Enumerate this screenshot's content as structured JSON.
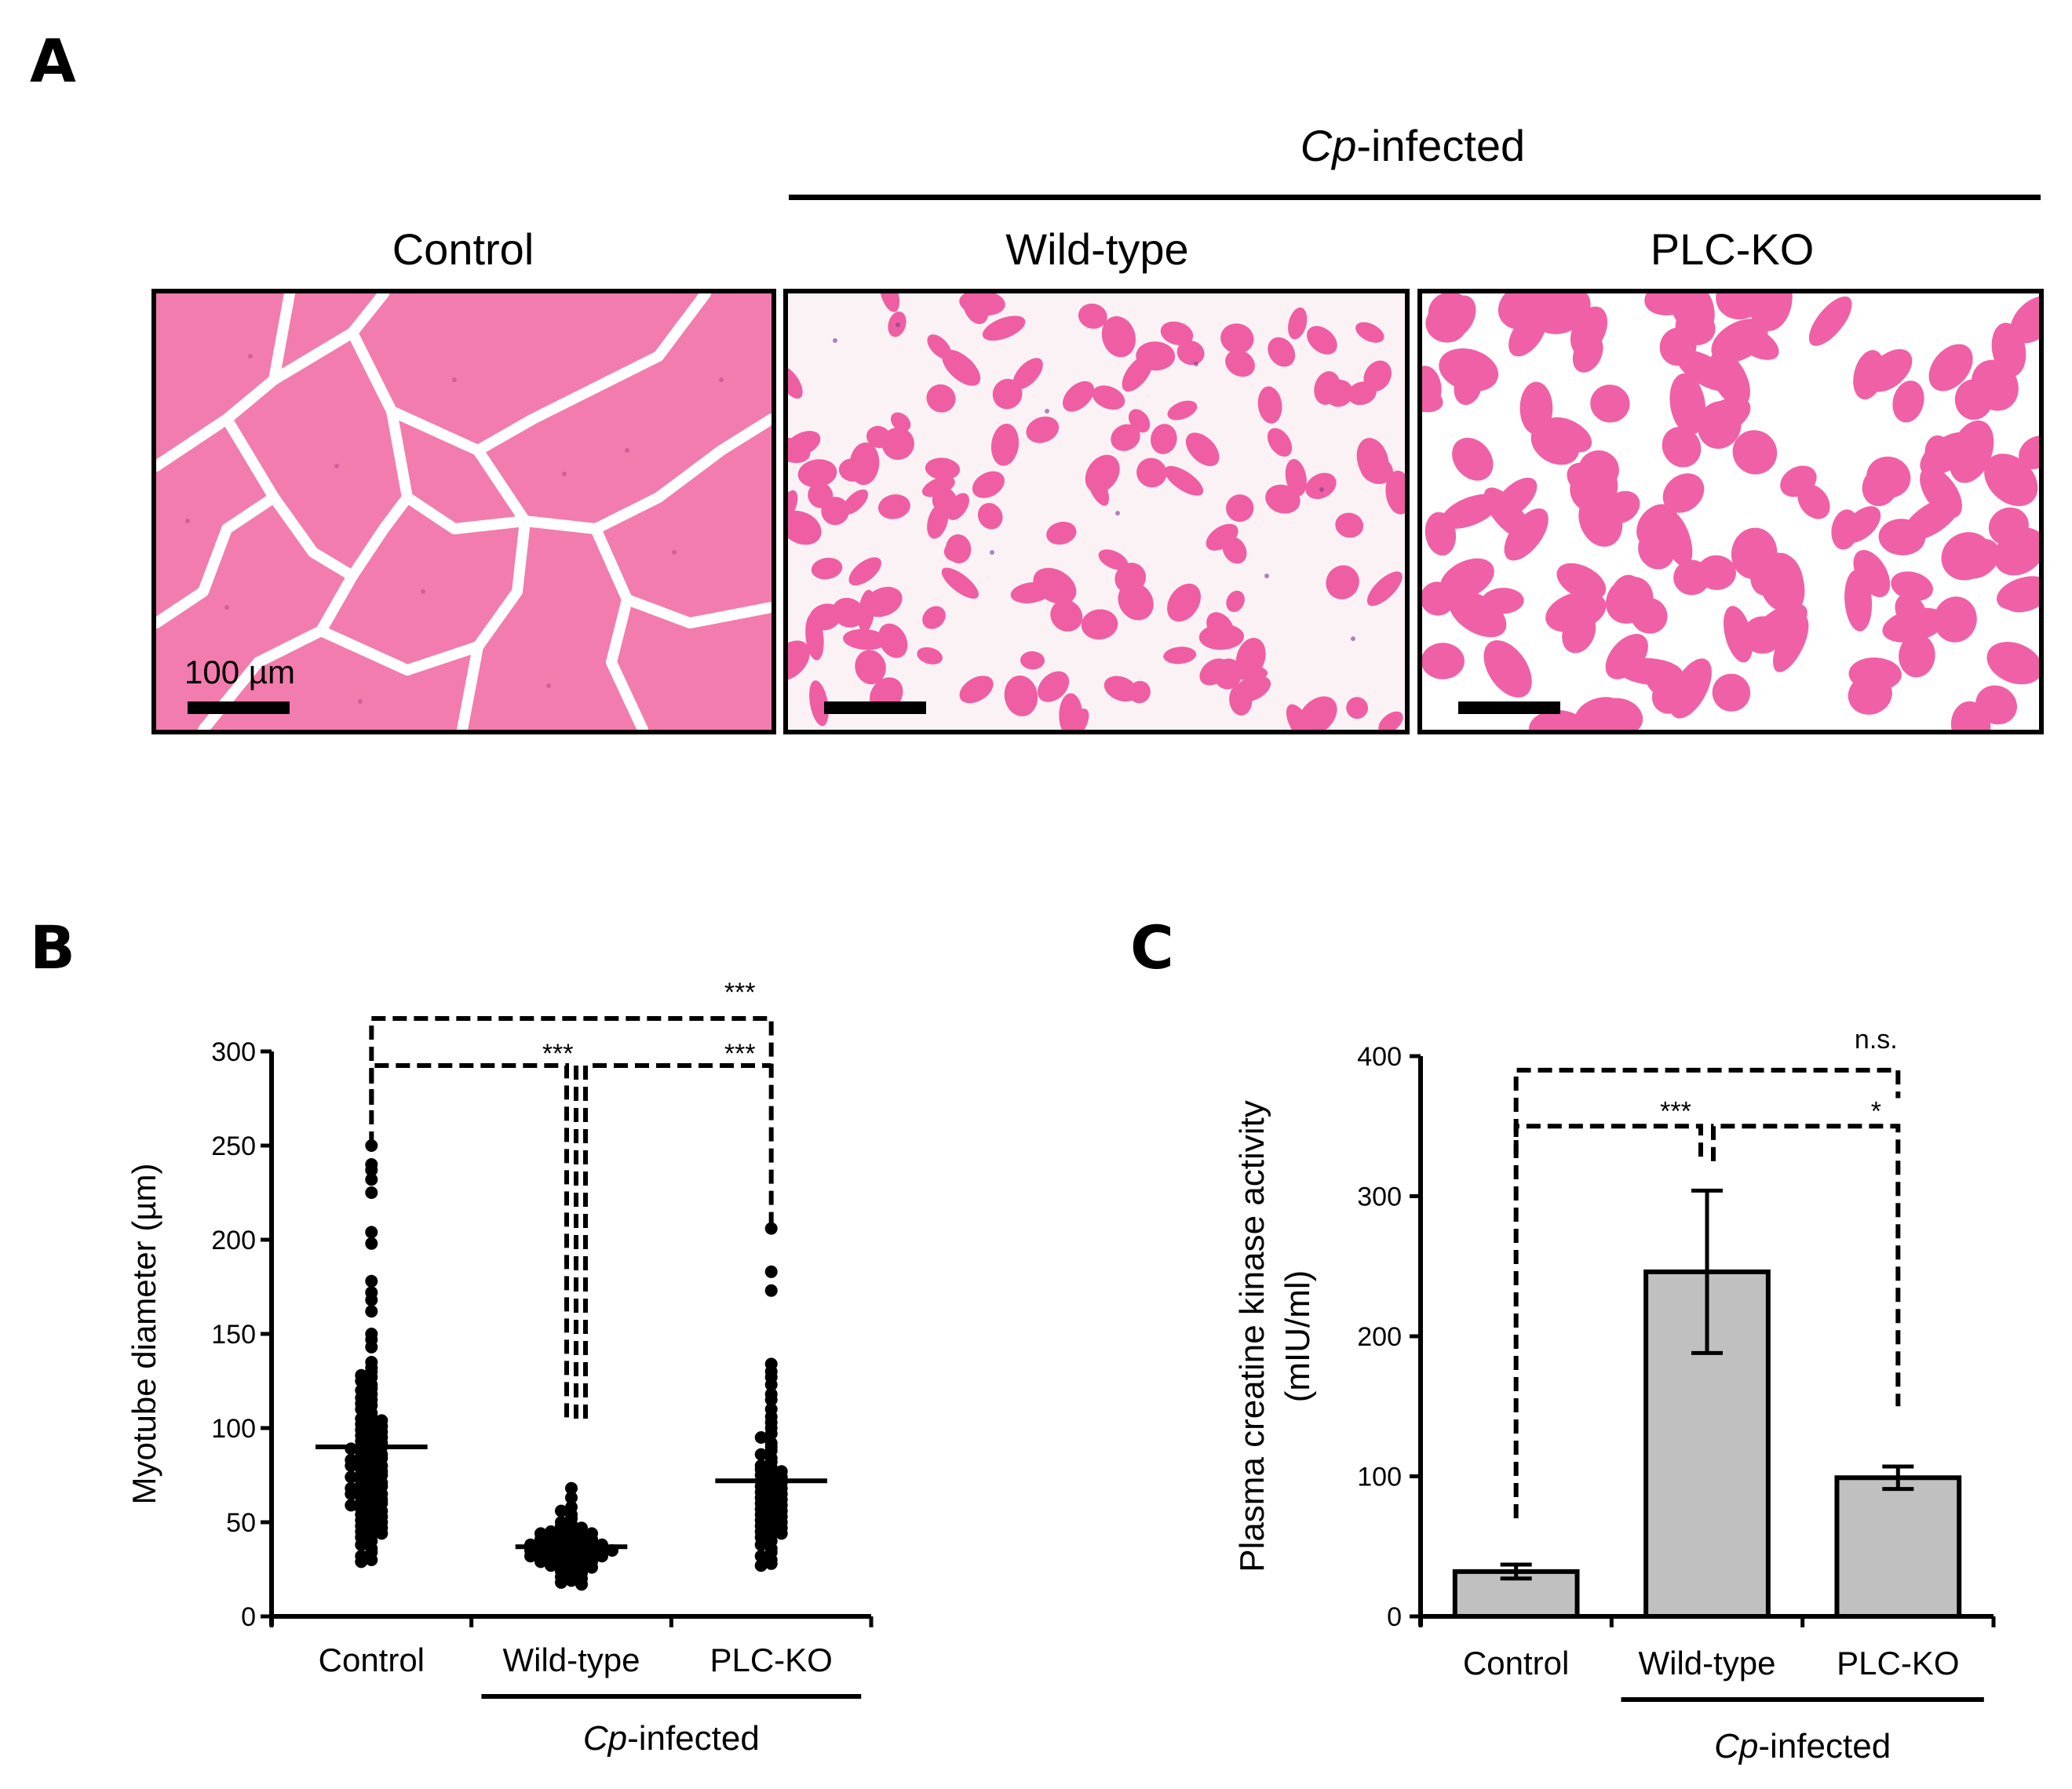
{
  "panel_labels": {
    "a": "A",
    "b": "B",
    "c": "C"
  },
  "panel_a": {
    "group_prefix": "Cp",
    "group_suffix": "-infected",
    "columns": [
      "Control",
      "Wild-type",
      "PLC-KO"
    ],
    "scale_bar_label": "100 µm",
    "colors": {
      "tissue": "#f26aa8",
      "background": "#ffffff",
      "stain": "#e8509a"
    }
  },
  "chart_data": [
    {
      "id": "B",
      "type": "scatter",
      "title": "",
      "ylabel": "Myotube diameter (µm)",
      "xlabel": "",
      "ylim": [
        0,
        300
      ],
      "yticks": [
        0,
        50,
        100,
        150,
        200,
        250,
        300
      ],
      "categories": [
        "Control",
        "Wild-type",
        "PLC-KO"
      ],
      "group_label_prefix": "Cp",
      "group_label_suffix": "-infected",
      "grouped_categories": [
        "Wild-type",
        "PLC-KO"
      ],
      "series": [
        {
          "name": "Control",
          "mean": 90,
          "sem": 4,
          "values": [
            250,
            240,
            237,
            232,
            225,
            204,
            198,
            178,
            172,
            168,
            162,
            150,
            147,
            143,
            135,
            132,
            130,
            128,
            127,
            125,
            123,
            121,
            120,
            118,
            116,
            115,
            113,
            112,
            110,
            108,
            106,
            105,
            104,
            103,
            102,
            101,
            100,
            99,
            98,
            97,
            96,
            95,
            94,
            93,
            92,
            91,
            90,
            90,
            89,
            88,
            87,
            86,
            85,
            85,
            84,
            83,
            82,
            81,
            80,
            80,
            79,
            78,
            77,
            76,
            75,
            75,
            74,
            73,
            72,
            71,
            70,
            70,
            69,
            68,
            67,
            66,
            65,
            65,
            64,
            63,
            62,
            61,
            60,
            60,
            59,
            58,
            57,
            56,
            55,
            54,
            53,
            52,
            51,
            50,
            49,
            48,
            47,
            46,
            45,
            44,
            43,
            42,
            40,
            38,
            36,
            34,
            32,
            30,
            29
          ]
        },
        {
          "name": "Wild-type",
          "mean": 37,
          "sem": 1,
          "values": [
            68,
            63,
            58,
            56,
            54,
            52,
            50,
            49,
            48,
            47,
            46,
            46,
            45,
            45,
            44,
            44,
            43,
            43,
            42,
            42,
            41,
            41,
            40,
            40,
            40,
            39,
            39,
            38,
            38,
            38,
            37,
            37,
            37,
            36,
            36,
            36,
            35,
            35,
            35,
            34,
            34,
            34,
            33,
            33,
            33,
            32,
            32,
            31,
            31,
            30,
            30,
            29,
            29,
            28,
            28,
            27,
            27,
            26,
            25,
            24,
            23,
            22,
            21,
            20,
            19,
            18,
            17
          ]
        },
        {
          "name": "PLC-KO",
          "mean": 72,
          "sem": 3,
          "values": [
            206,
            183,
            173,
            134,
            130,
            127,
            123,
            118,
            115,
            110,
            106,
            103,
            100,
            97,
            95,
            92,
            90,
            88,
            86,
            84,
            82,
            80,
            79,
            78,
            77,
            76,
            75,
            74,
            73,
            72,
            71,
            70,
            69,
            68,
            67,
            66,
            65,
            64,
            63,
            62,
            61,
            60,
            59,
            58,
            57,
            56,
            55,
            54,
            53,
            52,
            51,
            50,
            49,
            48,
            47,
            46,
            45,
            44,
            43,
            42,
            40,
            38,
            36,
            34,
            32,
            30,
            28,
            27
          ]
        }
      ],
      "significance": [
        {
          "from": "Control",
          "to": "PLC-KO",
          "label": "***"
        },
        {
          "from": "Control",
          "to": "Wild-type",
          "label": "***"
        },
        {
          "from": "Wild-type",
          "to": "PLC-KO",
          "label": "***"
        }
      ]
    },
    {
      "id": "C",
      "type": "bar",
      "title": "",
      "ylabel_line1": "Plasma creatine kinase activity",
      "ylabel_line2": "(mIU/ml)",
      "xlabel": "",
      "ylim": [
        0,
        400
      ],
      "yticks": [
        0,
        100,
        200,
        300,
        400
      ],
      "categories": [
        "Control",
        "Wild-type",
        "PLC-KO"
      ],
      "values": [
        32,
        246,
        99
      ],
      "errors": [
        5,
        58,
        8
      ],
      "bar_color": "#c0c0c0",
      "group_label_prefix": "Cp",
      "group_label_suffix": "-infected",
      "grouped_categories": [
        "Wild-type",
        "PLC-KO"
      ],
      "significance": [
        {
          "from": "Control",
          "to": "PLC-KO",
          "label": "n.s."
        },
        {
          "from": "Control",
          "to": "Wild-type",
          "label": "***"
        },
        {
          "from": "Wild-type",
          "to": "PLC-KO",
          "label": "*"
        }
      ]
    }
  ]
}
